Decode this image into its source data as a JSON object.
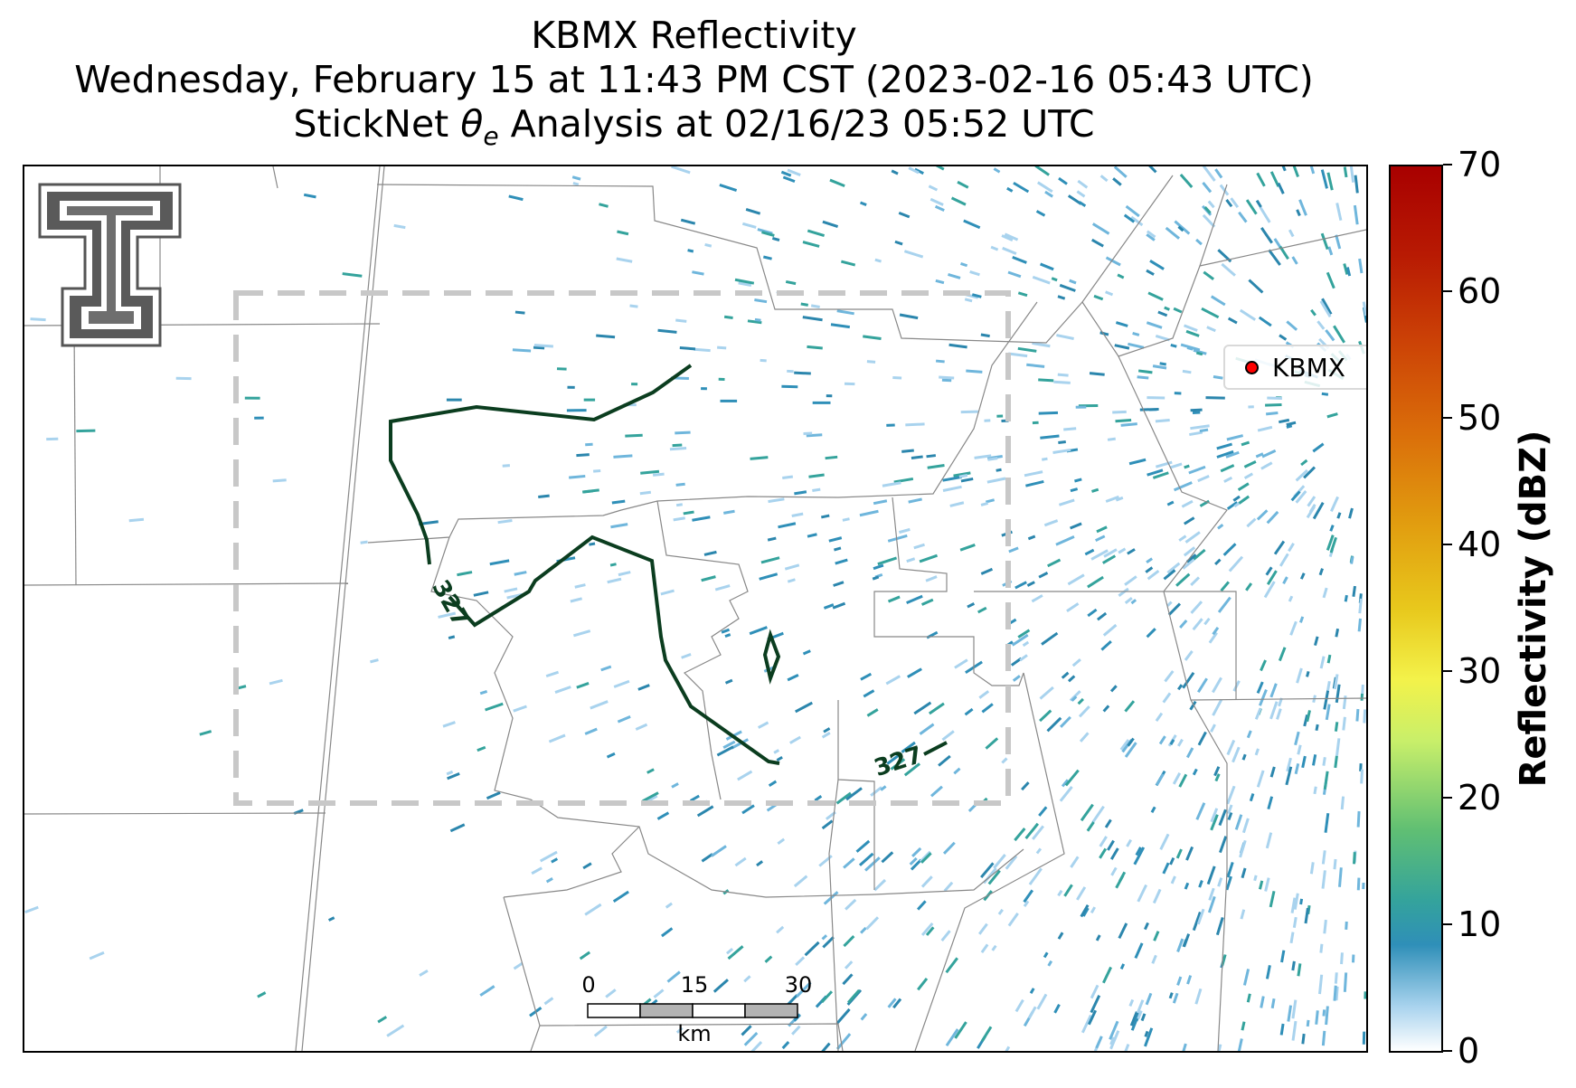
{
  "title": {
    "line1": "KBMX Reflectivity",
    "line2": "Wednesday, February 15 at 11:43 PM CST (2023-02-16 05:43 UTC)",
    "line3_prefix": "StickNet ",
    "line3_symbol": "θ",
    "line3_sub": "e",
    "line3_suffix": " Analysis at 02/16/23 05:52 UTC"
  },
  "legend": {
    "label": "KBMX",
    "marker_color": "#ff0000"
  },
  "colorbar": {
    "label": "Reflectivity (dBZ)",
    "ticks": [
      "0",
      "10",
      "20",
      "30",
      "40",
      "50",
      "60",
      "70"
    ],
    "range": [
      0,
      70
    ]
  },
  "contours": {
    "level_label": "327",
    "color": "#0b3d1f"
  },
  "scalebar": {
    "ticks": [
      "0",
      "15",
      "30"
    ],
    "unit": "km"
  },
  "analysis_box": {
    "style": "dashed",
    "color": "#c8c8c8"
  },
  "logo": {
    "icon": "double-t-logo-icon"
  },
  "colors": {
    "reflectivity_low": "#a9d3ee",
    "reflectivity_mid": "#2f8fb8",
    "reflectivity_teal": "#34a39c",
    "county_lines": "#888888"
  }
}
